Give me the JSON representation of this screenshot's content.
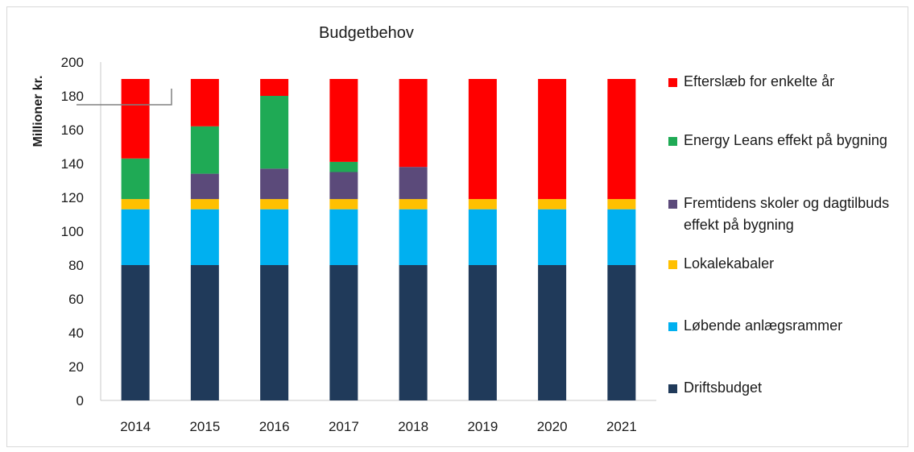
{
  "chart_data": {
    "type": "bar",
    "stacked": true,
    "title": "Budgetbehov",
    "xlabel": "",
    "ylabel": "Millioner kr.",
    "ylim": [
      0,
      200
    ],
    "yticks": [
      0,
      20,
      40,
      60,
      80,
      100,
      120,
      140,
      160,
      180,
      200
    ],
    "grid": false,
    "legend_position": "right",
    "categories": [
      "2014",
      "2015",
      "2016",
      "2017",
      "2018",
      "2019",
      "2020",
      "2021"
    ],
    "series": [
      {
        "name": "Driftsbudget",
        "color": "#203a5a",
        "values": [
          80,
          80,
          80,
          80,
          80,
          80,
          80,
          80
        ]
      },
      {
        "name": "Løbende anlægsrammer",
        "color": "#00b0f0",
        "values": [
          33,
          33,
          33,
          33,
          33,
          33,
          33,
          33
        ]
      },
      {
        "name": "Lokalekabaler",
        "color": "#ffc000",
        "values": [
          6,
          6,
          6,
          6,
          6,
          6,
          6,
          6
        ]
      },
      {
        "name": "Fremtidens skoler og dagtilbuds effekt på bygning",
        "color": "#5b4a7a",
        "values": [
          0,
          15,
          18,
          16,
          19,
          0,
          0,
          0
        ]
      },
      {
        "name": "Energy Leans effekt på bygning",
        "color": "#1faa55",
        "values": [
          24,
          28,
          43,
          6,
          0,
          0,
          0,
          0
        ]
      },
      {
        "name": "Efterslæb for enkelte år",
        "color": "#ff0000",
        "values": [
          47,
          28,
          10,
          49,
          52,
          71,
          71,
          71
        ]
      }
    ]
  }
}
